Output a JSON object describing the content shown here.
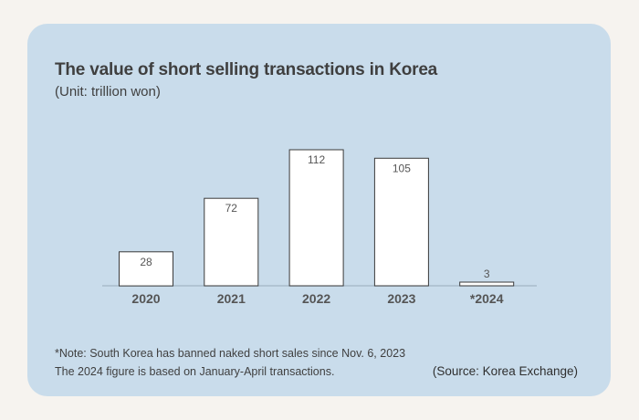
{
  "chart_data": {
    "type": "bar",
    "title": "The value of short selling transactions in Korea",
    "subtitle": "(Unit: trillion won)",
    "categories": [
      "2020",
      "2021",
      "2022",
      "2023",
      "*2024"
    ],
    "values": [
      28,
      72,
      112,
      105,
      3
    ],
    "value_labels": [
      "28",
      "72",
      "112",
      "105",
      "3"
    ],
    "ylim": [
      0,
      112
    ],
    "grid": false,
    "legend": "none",
    "colors": {
      "bar_fill": "#ffffff",
      "bar_stroke": "#3a3a3a",
      "card_background": "#c9dceb"
    }
  },
  "notes": {
    "line1": "*Note: South Korea has banned naked short sales since Nov. 6, 2023",
    "line2": "The 2024 figure is based on January-April transactions."
  },
  "source": "(Source: Korea Exchange)"
}
